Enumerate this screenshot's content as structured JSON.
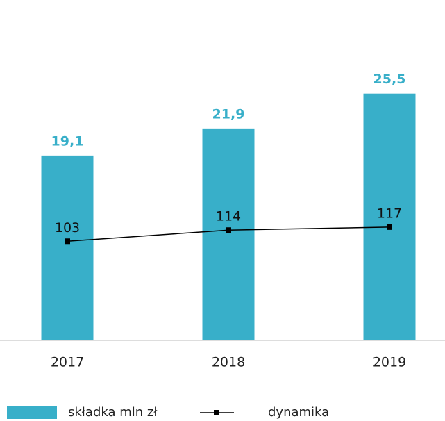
{
  "chart_data": {
    "type": "bar",
    "categories": [
      "2017",
      "2018",
      "2019"
    ],
    "series": [
      {
        "name": "składka mln zł",
        "color": "#38afc9",
        "values": [
          19.1,
          21.9,
          25.5
        ],
        "value_labels": [
          "19,1",
          "21,9",
          "25,5"
        ]
      },
      {
        "name": "dynamika",
        "type": "line",
        "color": "#000000",
        "axis": "y2",
        "values": [
          103,
          114,
          117
        ]
      }
    ],
    "ylim": [
      0,
      30
    ],
    "y2lim": [
      5,
      292
    ]
  }
}
